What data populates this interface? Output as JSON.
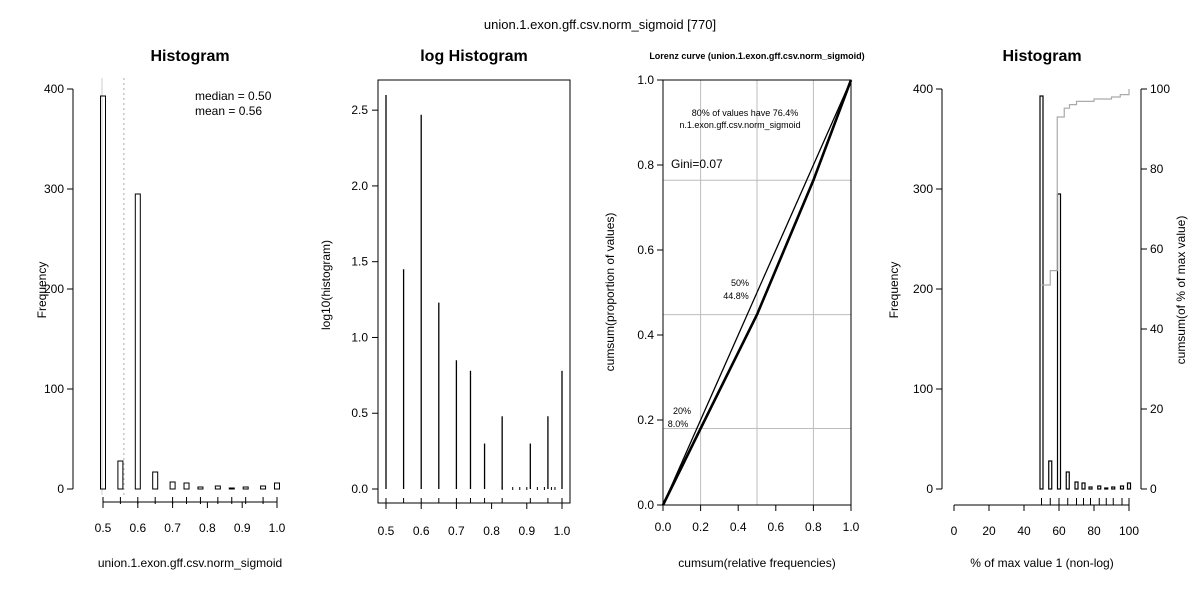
{
  "figure": {
    "title": "union.1.exon.gff.csv.norm_sigmoid [770]"
  },
  "chart_data": [
    {
      "type": "bar",
      "title": "Histogram",
      "xlabel": "union.1.exon.gff.csv.norm_sigmoid",
      "ylabel": "Frequency",
      "xlim": [
        0.5,
        1.0
      ],
      "ylim": [
        0,
        400
      ],
      "xticks": [
        "0.5",
        "0.6",
        "0.7",
        "0.8",
        "0.9",
        "1.0"
      ],
      "yticks": [
        "0",
        "100",
        "200",
        "300",
        "400"
      ],
      "bins": [
        {
          "x": 0.5,
          "value": 393
        },
        {
          "x": 0.55,
          "value": 28
        },
        {
          "x": 0.6,
          "value": 295
        },
        {
          "x": 0.65,
          "value": 17
        },
        {
          "x": 0.7,
          "value": 7
        },
        {
          "x": 0.74,
          "value": 6
        },
        {
          "x": 0.78,
          "value": 2
        },
        {
          "x": 0.83,
          "value": 3
        },
        {
          "x": 0.87,
          "value": 1
        },
        {
          "x": 0.91,
          "value": 2
        },
        {
          "x": 0.96,
          "value": 3
        },
        {
          "x": 1.0,
          "value": 6
        }
      ],
      "annotations": [
        "median = 0.50",
        "mean = 0.56"
      ],
      "mean_line": 0.56
    },
    {
      "type": "bar",
      "title": "log Histogram",
      "ylabel": "log10(histogram)",
      "xlim": [
        0.5,
        1.0
      ],
      "ylim": [
        0,
        2.6
      ],
      "xticks": [
        "0.5",
        "0.6",
        "0.7",
        "0.8",
        "0.9",
        "1.0"
      ],
      "yticks": [
        "0.0",
        "0.5",
        "1.0",
        "1.5",
        "2.0",
        "2.5"
      ],
      "bins": [
        {
          "x": 0.5,
          "value": 2.6
        },
        {
          "x": 0.55,
          "value": 1.45
        },
        {
          "x": 0.6,
          "value": 2.47
        },
        {
          "x": 0.65,
          "value": 1.23
        },
        {
          "x": 0.7,
          "value": 0.85
        },
        {
          "x": 0.74,
          "value": 0.78
        },
        {
          "x": 0.78,
          "value": 0.3
        },
        {
          "x": 0.83,
          "value": 0.48
        },
        {
          "x": 0.91,
          "value": 0.3
        },
        {
          "x": 0.96,
          "value": 0.48
        },
        {
          "x": 1.0,
          "value": 0.78
        }
      ]
    },
    {
      "type": "line",
      "title": "Lorenz curve (union.1.exon.gff.csv.norm_sigmoid)",
      "xlabel": "cumsum(relative frequencies)",
      "ylabel": "cumsum(proportion of values)",
      "xlim": [
        0,
        1
      ],
      "ylim": [
        0,
        1
      ],
      "xticks": [
        "0.0",
        "0.2",
        "0.4",
        "0.6",
        "0.8",
        "1.0"
      ],
      "yticks": [
        "0.0",
        "0.2",
        "0.4",
        "0.6",
        "0.8",
        "1.0"
      ],
      "series": [
        {
          "x": [
            0,
            1
          ],
          "y": [
            0,
            1
          ]
        },
        {
          "x": [
            0,
            0.2,
            0.5,
            0.8,
            1.0
          ],
          "y": [
            0,
            0.18,
            0.448,
            0.764,
            1.0
          ]
        }
      ],
      "guides": {
        "x": [
          0.2,
          0.5,
          0.8
        ],
        "y": [
          0.18,
          0.448,
          0.764
        ]
      },
      "annotations": [
        "80% of values have 76.4%",
        "n.1.exon.gff.csv.norm_sigmoid",
        "Gini=0.07",
        "50%",
        "44.8%",
        "20%",
        "8.0%"
      ]
    },
    {
      "type": "bar",
      "title": "Histogram",
      "xlabel": "% of max value 1 (non-log)",
      "ylabel": "Frequency",
      "y2label": "cumsum(of % of max value)",
      "xlim": [
        0,
        100
      ],
      "ylim": [
        0,
        400
      ],
      "y2lim": [
        0,
        100
      ],
      "xticks": [
        "0",
        "20",
        "40",
        "60",
        "80",
        "100"
      ],
      "yticks": [
        "0",
        "100",
        "200",
        "300",
        "400"
      ],
      "y2ticks": [
        "0",
        "20",
        "40",
        "60",
        "80",
        "100"
      ],
      "bins": [
        {
          "x": 50,
          "value": 393
        },
        {
          "x": 55,
          "value": 28
        },
        {
          "x": 60,
          "value": 295
        },
        {
          "x": 65,
          "value": 17
        },
        {
          "x": 70,
          "value": 7
        },
        {
          "x": 74,
          "value": 6
        },
        {
          "x": 78,
          "value": 2
        },
        {
          "x": 83,
          "value": 3
        },
        {
          "x": 87,
          "value": 1
        },
        {
          "x": 91,
          "value": 2
        },
        {
          "x": 96,
          "value": 3
        },
        {
          "x": 100,
          "value": 6
        }
      ],
      "cumulative": {
        "x": [
          50,
          53,
          55,
          57,
          58,
          59,
          60,
          61,
          62,
          63,
          64,
          66,
          70,
          80,
          90,
          95,
          100
        ],
        "y": [
          51,
          51,
          54.6,
          54.6,
          54.6,
          93,
          93,
          93,
          93,
          95.2,
          95.2,
          96.1,
          96.9,
          97.5,
          98,
          98.6,
          100
        ]
      }
    }
  ]
}
